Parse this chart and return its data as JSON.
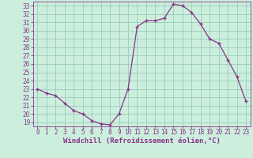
{
  "x": [
    0,
    1,
    2,
    3,
    4,
    5,
    6,
    7,
    8,
    9,
    10,
    11,
    12,
    13,
    14,
    15,
    16,
    17,
    18,
    19,
    20,
    21,
    22,
    23
  ],
  "y": [
    23.0,
    22.5,
    22.2,
    21.3,
    20.4,
    20.0,
    19.2,
    18.8,
    18.7,
    20.0,
    23.0,
    30.5,
    31.2,
    31.2,
    31.5,
    33.2,
    33.0,
    32.2,
    30.8,
    29.0,
    28.5,
    26.5,
    24.5,
    21.5
  ],
  "xlim": [
    -0.5,
    23.5
  ],
  "ylim": [
    18.5,
    33.5
  ],
  "yticks": [
    19,
    20,
    21,
    22,
    23,
    24,
    25,
    26,
    27,
    28,
    29,
    30,
    31,
    32,
    33
  ],
  "xticks": [
    0,
    1,
    2,
    3,
    4,
    5,
    6,
    7,
    8,
    9,
    10,
    11,
    12,
    13,
    14,
    15,
    16,
    17,
    18,
    19,
    20,
    21,
    22,
    23
  ],
  "line_color": "#883388",
  "marker": "+",
  "bg_color": "#cceedd",
  "grid_color": "#99ccbb",
  "xlabel": "Windchill (Refroidissement éolien,°C)",
  "tick_color": "#883388",
  "axis_label_color": "#883388",
  "xlabel_fontsize": 6.5,
  "tick_fontsize": 5.5
}
